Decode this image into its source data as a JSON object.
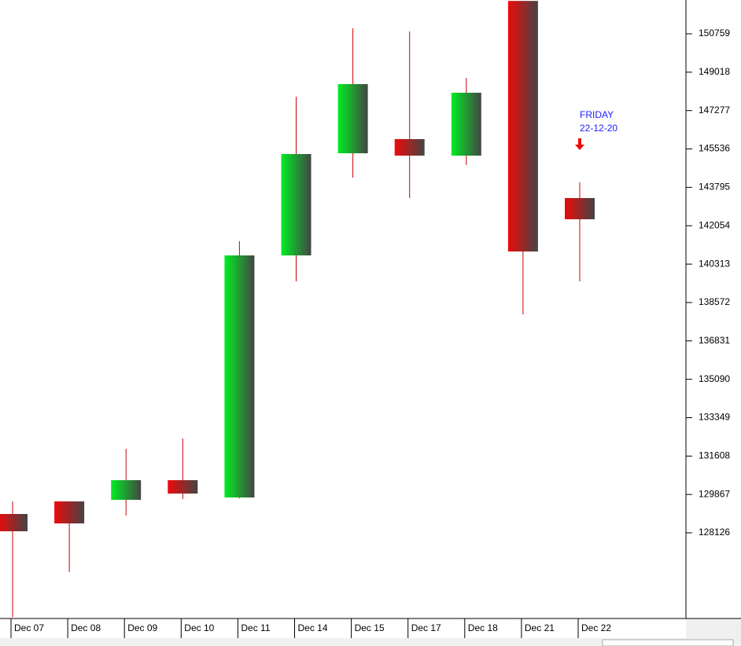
{
  "chart_data": {
    "type": "candlestick",
    "categories": [
      "Dec 07",
      "Dec 08",
      "Dec 09",
      "Dec 10",
      "Dec 11",
      "Dec 14",
      "Dec 15",
      "Dec 17",
      "Dec 18",
      "Dec 21",
      "Dec 22"
    ],
    "open": [
      128981,
      129551,
      129623,
      130514,
      129730,
      140708,
      145341,
      145983,
      145234,
      152250,
      143310
    ],
    "high": [
      129551,
      129551,
      131939,
      132403,
      141349,
      147908,
      151009,
      150866,
      148763,
      152250,
      144022
    ],
    "low": [
      124300,
      126344,
      128910,
      129658,
      129694,
      139531,
      144236,
      143310,
      144807,
      138034,
      139531
    ],
    "close": [
      128197,
      128553,
      130514,
      129908,
      140708,
      145306,
      148478,
      145234,
      148086,
      140886,
      142347
    ],
    "up_color": "#00ee22",
    "down_color": "#ee0a0a",
    "wick_color": "#cc0000",
    "ylim": [
      124241,
      152292
    ],
    "yticks": [
      150759,
      149018,
      147277,
      145536,
      143795,
      142054,
      140313,
      138572,
      136831,
      135090,
      133349,
      131608,
      129867,
      128126
    ],
    "annotation": [
      "FRIDAY",
      "22-12-20"
    ]
  }
}
